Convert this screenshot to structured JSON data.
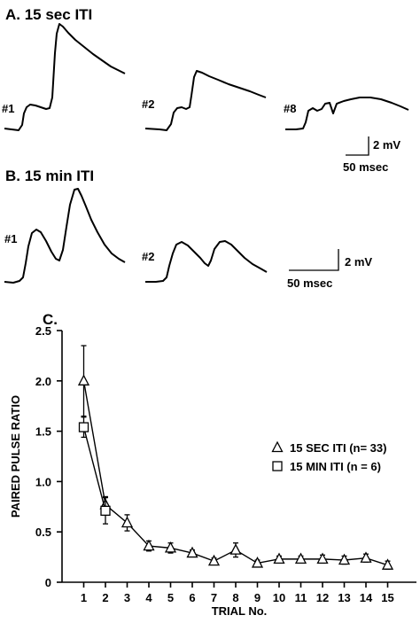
{
  "panel_a": {
    "title": "A.  15 sec ITI",
    "trace_labels": [
      "#1",
      "#2",
      "#8"
    ],
    "scale_voltage": "2 mV",
    "scale_time": "50 msec"
  },
  "panel_b": {
    "title": "B.  15 min ITI",
    "trace_labels": [
      "#1",
      "#2"
    ],
    "scale_voltage": "2 mV",
    "scale_time": "50 msec"
  },
  "chart_data": {
    "panel_label": "C.",
    "type": "line",
    "xlabel": "TRIAL No.",
    "ylabel": "PAIRED PULSE RATIO",
    "x": [
      1,
      2,
      3,
      4,
      5,
      6,
      7,
      8,
      9,
      10,
      11,
      12,
      13,
      14,
      15
    ],
    "xlim": [
      0,
      15
    ],
    "ylim": [
      0,
      2.5
    ],
    "yticks": [
      "0",
      "0.5",
      "1.0",
      "1.5",
      "2.0",
      "2.5"
    ],
    "legend_position": "right",
    "series": [
      {
        "name": "15 SEC ITI (n= 33)",
        "marker": "triangle",
        "x": [
          1,
          2,
          3,
          4,
          5,
          6,
          7,
          8,
          9,
          10,
          11,
          12,
          13,
          14,
          15
        ],
        "y": [
          2.0,
          0.77,
          0.59,
          0.36,
          0.34,
          0.29,
          0.21,
          0.32,
          0.19,
          0.23,
          0.23,
          0.23,
          0.22,
          0.24,
          0.17
        ],
        "err": [
          0.35,
          0.08,
          0.08,
          0.05,
          0.05,
          0.03,
          0.03,
          0.07,
          0.03,
          0.03,
          0.03,
          0.04,
          0.04,
          0.04,
          0.04
        ]
      },
      {
        "name": "15 MIN ITI (n = 6)",
        "marker": "square",
        "x": [
          1,
          2
        ],
        "y": [
          1.54,
          0.71
        ],
        "err": [
          0.1,
          0.13
        ]
      }
    ]
  }
}
